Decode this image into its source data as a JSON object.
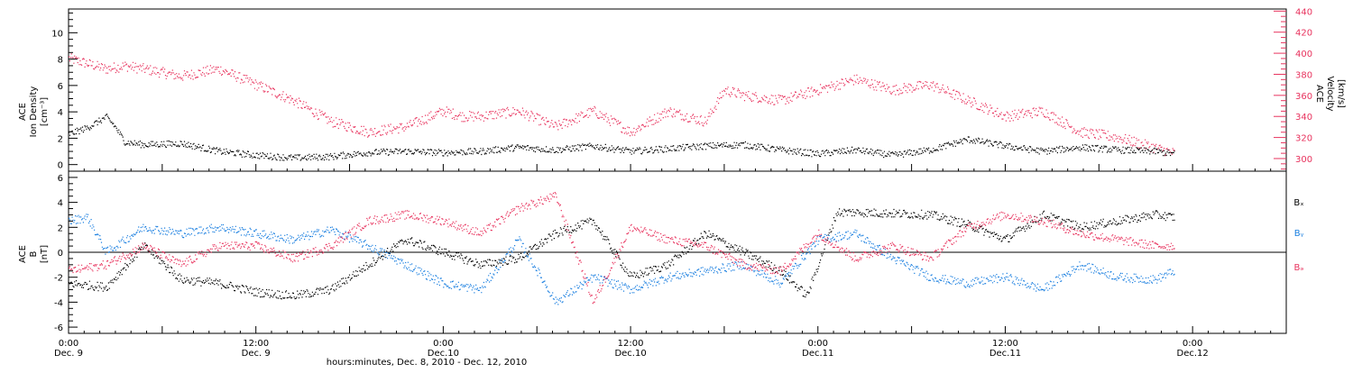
{
  "colors": {
    "density": "#000000",
    "velocity": "#e8335e",
    "bx": "#000000",
    "by": "#1a7fe0",
    "bz": "#e8335e"
  },
  "xaxis": {
    "ticks": [
      {
        "t": 0,
        "label": "0:00",
        "sub": "Dec. 9"
      },
      {
        "t": 0.5,
        "label": "12:00",
        "sub": "Dec. 9"
      },
      {
        "t": 1,
        "label": "0:00",
        "sub": "Dec.10"
      },
      {
        "t": 1.5,
        "label": "12:00",
        "sub": "Dec.10"
      },
      {
        "t": 2,
        "label": "0:00",
        "sub": "Dec.11"
      },
      {
        "t": 2.5,
        "label": "12:00",
        "sub": "Dec.11"
      },
      {
        "t": 3,
        "label": "0:00",
        "sub": "Dec.12"
      }
    ],
    "title": "hours:minutes, Dec. 8, 2010 - Dec. 12, 2010"
  },
  "panel_top": {
    "left_label": [
      "ACE",
      "Ion Density",
      "[cm⁻³]"
    ],
    "right_label": [
      "ACE",
      "Velocity",
      "[km/s]"
    ]
  },
  "panel_bottom": {
    "left_label": [
      "ACE",
      "B",
      "[nT]"
    ],
    "legend": [
      "Bₓ",
      "Bᵧ",
      "Bₔ"
    ]
  },
  "chart_data": [
    {
      "type": "scatter",
      "title": "",
      "xlabel": "hours:minutes, Dec. 8, 2010 - Dec. 12, 2010",
      "ylabel": "ACE Ion Density [cm⁻³]",
      "y2label": "ACE Velocity [km/s]",
      "xlim": [
        0,
        3.25
      ],
      "ylim": [
        -0.5,
        11.8
      ],
      "y2lim": [
        288,
        442
      ],
      "yticks": [
        0,
        2,
        4,
        6,
        8,
        10
      ],
      "y2ticks": [
        300,
        320,
        340,
        360,
        380,
        400,
        420,
        440
      ],
      "series": [
        {
          "name": "",
          "axis": "y",
          "x": [
            0,
            0.05,
            0.1,
            0.12,
            0.15,
            0.2,
            0.3,
            0.4,
            0.5,
            0.6,
            0.7,
            0.8,
            0.9,
            1.0,
            1.1,
            1.2,
            1.3,
            1.4,
            1.5,
            1.6,
            1.7,
            1.8,
            1.9,
            2.0,
            2.1,
            2.2,
            2.3,
            2.4,
            2.5,
            2.6,
            2.7,
            2.8,
            2.9,
            2.95
          ],
          "values": [
            2.3,
            2.8,
            3.6,
            3.0,
            1.7,
            1.5,
            1.6,
            1.0,
            0.7,
            0.5,
            0.6,
            0.9,
            1.0,
            0.9,
            1.0,
            1.3,
            1.1,
            1.4,
            1.0,
            1.2,
            1.4,
            1.5,
            1.1,
            0.8,
            1.1,
            0.7,
            1.1,
            1.9,
            1.4,
            1.0,
            1.3,
            1.1,
            1.0,
            0.8
          ]
        },
        {
          "name": "",
          "axis": "y2",
          "x": [
            0,
            0.05,
            0.1,
            0.15,
            0.2,
            0.3,
            0.4,
            0.5,
            0.6,
            0.7,
            0.8,
            0.9,
            1.0,
            1.05,
            1.1,
            1.2,
            1.3,
            1.4,
            1.5,
            1.6,
            1.7,
            1.75,
            1.8,
            1.9,
            2.0,
            2.1,
            2.2,
            2.3,
            2.4,
            2.5,
            2.6,
            2.7,
            2.8,
            2.9,
            2.95
          ],
          "values": [
            395,
            390,
            385,
            388,
            385,
            378,
            385,
            370,
            355,
            335,
            325,
            330,
            345,
            340,
            340,
            345,
            330,
            345,
            325,
            345,
            335,
            365,
            360,
            355,
            365,
            375,
            365,
            370,
            355,
            340,
            345,
            325,
            320,
            310,
            305
          ]
        }
      ]
    },
    {
      "type": "scatter",
      "title": "",
      "xlabel": "hours:minutes, Dec. 8, 2010 - Dec. 12, 2010",
      "ylabel": "ACE B [nT]",
      "xlim": [
        0,
        3.25
      ],
      "ylim": [
        -6.5,
        6.5
      ],
      "yticks": [
        -6,
        -4,
        -2,
        0,
        2,
        4,
        6
      ],
      "series": [
        {
          "name": "Bₓ",
          "x": [
            0,
            0.1,
            0.2,
            0.3,
            0.4,
            0.5,
            0.6,
            0.7,
            0.8,
            0.9,
            1.0,
            1.1,
            1.2,
            1.3,
            1.4,
            1.5,
            1.6,
            1.7,
            1.8,
            1.9,
            1.97,
            2.05,
            2.1,
            2.2,
            2.3,
            2.4,
            2.5,
            2.6,
            2.7,
            2.8,
            2.9,
            2.95
          ],
          "values": [
            -2.5,
            -2.8,
            0.5,
            -2.2,
            -2.5,
            -3.2,
            -3.5,
            -3.0,
            -1.0,
            1.0,
            0.0,
            -1.0,
            -0.5,
            1.5,
            2.5,
            -2.0,
            -1.0,
            1.5,
            0.0,
            -1.5,
            -3.5,
            3.2,
            3.2,
            3.1,
            3.0,
            2.2,
            1.0,
            3.0,
            2.0,
            2.5,
            3.0,
            2.8
          ]
        },
        {
          "name": "Bᵧ",
          "x": [
            0,
            0.05,
            0.1,
            0.2,
            0.3,
            0.4,
            0.5,
            0.6,
            0.7,
            0.8,
            0.9,
            1.0,
            1.1,
            1.2,
            1.3,
            1.4,
            1.5,
            1.6,
            1.7,
            1.8,
            1.9,
            2.0,
            2.1,
            2.2,
            2.3,
            2.4,
            2.5,
            2.6,
            2.7,
            2.8,
            2.9,
            2.95
          ],
          "values": [
            2.5,
            2.8,
            0.0,
            2.0,
            1.5,
            2.0,
            1.5,
            1.0,
            1.8,
            0.5,
            -1.0,
            -2.5,
            -3.0,
            1.0,
            -4.0,
            -2.0,
            -3.0,
            -2.0,
            -1.5,
            -1.0,
            -2.5,
            1.0,
            1.5,
            -0.5,
            -2.0,
            -2.5,
            -2.0,
            -3.0,
            -1.0,
            -2.0,
            -2.2,
            -1.5
          ]
        },
        {
          "name": "Bₔ",
          "x": [
            0,
            0.1,
            0.2,
            0.3,
            0.4,
            0.5,
            0.6,
            0.7,
            0.8,
            0.9,
            1.0,
            1.1,
            1.2,
            1.3,
            1.4,
            1.5,
            1.6,
            1.7,
            1.8,
            1.9,
            2.0,
            2.1,
            2.2,
            2.3,
            2.4,
            2.5,
            2.6,
            2.7,
            2.8,
            2.9,
            2.95
          ],
          "values": [
            -1.5,
            -1.0,
            0.5,
            -1.0,
            0.5,
            0.5,
            -0.5,
            0.5,
            2.5,
            3.0,
            2.5,
            1.5,
            3.5,
            4.5,
            -4.0,
            2.0,
            1.0,
            0.5,
            -1.0,
            -1.5,
            1.5,
            -0.5,
            0.5,
            -0.5,
            2.0,
            3.0,
            2.5,
            1.5,
            1.0,
            0.5,
            0.5
          ]
        }
      ]
    }
  ]
}
